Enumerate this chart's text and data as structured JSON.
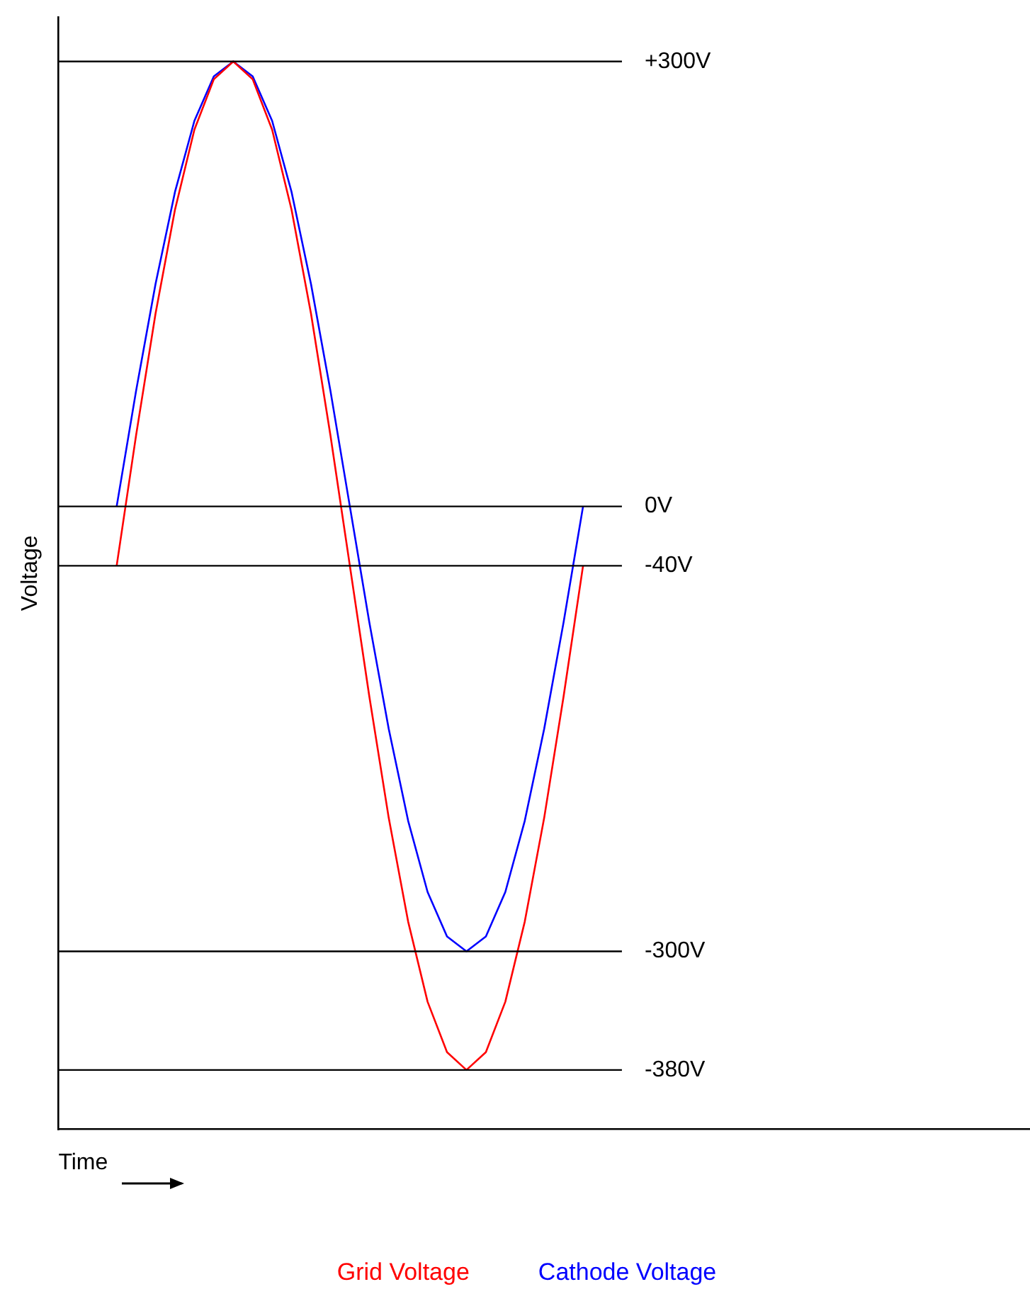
{
  "chart_data": {
    "type": "line",
    "xlabel": "Time",
    "ylabel": "Voltage",
    "categories": [
      null,
      null,
      null,
      null,
      null,
      null,
      null,
      null,
      null,
      null,
      null,
      null,
      null,
      null,
      null,
      null,
      null,
      null,
      null,
      null,
      null,
      null,
      null,
      null,
      null,
      null,
      null,
      null,
      null,
      null,
      null,
      null,
      null,
      null,
      null,
      null,
      null,
      null,
      null,
      null,
      null,
      null,
      null,
      null,
      null,
      null,
      null,
      null,
      null,
      null,
      null
    ],
    "series": [
      {
        "name": "Grid Voltage",
        "color": "#ff0000",
        "values": [
          null,
          null,
          null,
          -40,
          48,
          130,
          200,
          254,
          288,
          300,
          288,
          254,
          200,
          130,
          48,
          -40,
          -128,
          -210,
          -280,
          -334,
          -368,
          -380,
          -368,
          -334,
          -280,
          -210,
          -128,
          -40,
          null,
          null,
          null,
          null,
          null,
          null,
          null,
          null,
          null,
          null,
          null,
          null,
          null,
          null,
          null,
          null,
          null,
          null,
          null,
          null,
          null,
          null,
          null
        ]
      },
      {
        "name": "Cathode Voltage",
        "color": "#0000ff",
        "values": [
          null,
          null,
          null,
          0,
          78,
          150,
          212,
          260,
          290,
          300,
          290,
          260,
          212,
          150,
          78,
          0,
          -78,
          -150,
          -212,
          -260,
          -290,
          -300,
          -290,
          -260,
          -212,
          -150,
          -78,
          0,
          null,
          null,
          null,
          null,
          null,
          null,
          null,
          null,
          null,
          null,
          null,
          null,
          null,
          null,
          null,
          null,
          null,
          null,
          null,
          null,
          null,
          null,
          null
        ]
      }
    ],
    "ylim": [
      -420,
      330
    ],
    "ref_lines": [
      {
        "axis": "y",
        "value": 300,
        "label": "+300V"
      },
      {
        "axis": "y",
        "value": 0,
        "label": "0V"
      },
      {
        "axis": "y",
        "value": -40,
        "label": "-40V"
      },
      {
        "axis": "y",
        "value": -300,
        "label": "-300V"
      },
      {
        "axis": "y",
        "value": -380,
        "label": "-380V"
      }
    ],
    "tick_labels": false,
    "grid": false,
    "legend": "bottom",
    "marker": "none",
    "line_style": "solid"
  }
}
